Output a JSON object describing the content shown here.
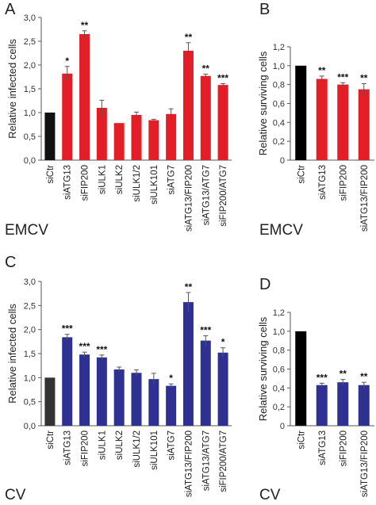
{
  "chart_data": [
    {
      "type": "bar",
      "panel": "A",
      "virus": "EMCV",
      "ylabel": "Relative infected cells",
      "ylim": [
        0,
        3
      ],
      "yticks": [
        "0,0",
        "0,5",
        "1,0",
        "1,5",
        "2,0",
        "2,5",
        "3,0"
      ],
      "categories": [
        "siCtr",
        "siATG13",
        "siFIP200",
        "siULK1",
        "siULK2",
        "siULK1/2",
        "siULK101",
        "siATG7",
        "siATG13/FIP200",
        "siATG13/ATG7",
        "siFIP200/ATG7"
      ],
      "values": [
        1.0,
        1.82,
        2.65,
        1.1,
        0.78,
        0.95,
        0.84,
        0.97,
        2.3,
        1.77,
        1.58
      ],
      "errors": [
        0,
        0.15,
        0.07,
        0.16,
        0,
        0.06,
        0.02,
        0.11,
        0.17,
        0.04,
        0.03
      ],
      "significance": [
        "",
        "*",
        "**",
        "",
        "",
        "",
        "",
        "",
        "**",
        "**",
        "***"
      ],
      "colors": [
        "#111111",
        "#e41e26",
        "#e41e26",
        "#e41e26",
        "#e41e26",
        "#e41e26",
        "#e41e26",
        "#e41e26",
        "#e41e26",
        "#e41e26",
        "#e41e26"
      ]
    },
    {
      "type": "bar",
      "panel": "B",
      "virus": "EMCV",
      "ylabel": "Relative surviving cells",
      "ylim": [
        0,
        1.2
      ],
      "yticks": [
        "0",
        "0,2",
        "0,4",
        "0,6",
        "0,8",
        "1,0",
        "1,2"
      ],
      "categories": [
        "siCtr",
        "siATG13",
        "siFIP200",
        "siATG13/FIP200"
      ],
      "values": [
        1.0,
        0.86,
        0.8,
        0.75
      ],
      "errors": [
        0,
        0.03,
        0.02,
        0.06
      ],
      "significance": [
        "",
        "**",
        "***",
        "**"
      ],
      "colors": [
        "#000000",
        "#e41e26",
        "#e41e26",
        "#e41e26"
      ]
    },
    {
      "type": "bar",
      "panel": "C",
      "virus": "CV",
      "ylabel": "Relative infected cells",
      "ylim": [
        0,
        3
      ],
      "yticks": [
        "0,0",
        "0,5",
        "1,0",
        "1,5",
        "2,0",
        "2,5",
        "3,0"
      ],
      "categories": [
        "siCtr",
        "siATG13",
        "siFIP200",
        "siULK1",
        "siULK2",
        "siULK1/2",
        "siULK101",
        "siATG7",
        "siATG13/FIP200",
        "siATG13/ATG7",
        "siFIP200/ATG7"
      ],
      "values": [
        1.0,
        1.84,
        1.48,
        1.42,
        1.17,
        1.1,
        0.97,
        0.83,
        2.57,
        1.77,
        1.52
      ],
      "errors": [
        0,
        0.06,
        0.05,
        0.05,
        0.05,
        0.06,
        0.12,
        0.04,
        0.2,
        0.1,
        0.1
      ],
      "significance": [
        "",
        "***",
        "***",
        "***",
        "",
        "",
        "",
        "*",
        "**",
        "***",
        "*"
      ],
      "colors": [
        "#333333",
        "#2e3192",
        "#2e3192",
        "#2e3192",
        "#2e3192",
        "#2e3192",
        "#2e3192",
        "#2e3192",
        "#2e3192",
        "#2e3192",
        "#2e3192"
      ]
    },
    {
      "type": "bar",
      "panel": "D",
      "virus": "CV",
      "ylabel": "Relative surviving cells",
      "ylim": [
        0,
        1.2
      ],
      "yticks": [
        "0",
        "0,2",
        "0,4",
        "0,6",
        "0,8",
        "1,0",
        "1,2"
      ],
      "categories": [
        "siCtr",
        "siATG13",
        "siFIP200",
        "siATG13/FIP200"
      ],
      "values": [
        1.0,
        0.43,
        0.46,
        0.43
      ],
      "errors": [
        0,
        0.02,
        0.03,
        0.03
      ],
      "significance": [
        "",
        "***",
        "**",
        "**"
      ],
      "colors": [
        "#000000",
        "#2e3192",
        "#2e3192",
        "#2e3192"
      ]
    }
  ]
}
